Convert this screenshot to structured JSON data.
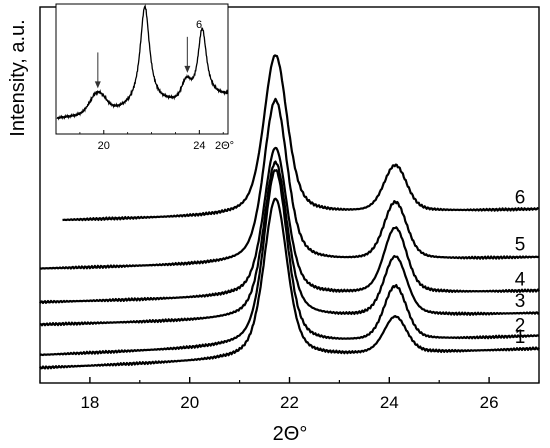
{
  "chart_data": [
    {
      "type": "line",
      "xlabel": "2Θ°",
      "ylabel": "Intensity, a.u.",
      "xlim": [
        17,
        27
      ],
      "xticks": [
        18,
        20,
        22,
        24,
        26
      ],
      "yticks": "none",
      "grid": false,
      "legend": "none (curve numbers printed at right end of each curve)",
      "peaks_2theta": [
        21.72,
        24.12
      ],
      "series": [
        {
          "name": "1",
          "baseline": 0.0,
          "peak1_height": 1.0,
          "peak2_height": 0.23
        },
        {
          "name": "2",
          "baseline": 0.08,
          "peak1_height": 1.1,
          "peak2_height": 0.34
        },
        {
          "name": "3",
          "baseline": 0.27,
          "peak1_height": 0.98,
          "peak2_height": 0.37
        },
        {
          "name": "4",
          "baseline": 0.41,
          "peak1_height": 0.93,
          "peak2_height": 0.41
        },
        {
          "name": "5",
          "baseline": 0.62,
          "peak1_height": 1.02,
          "peak2_height": 0.36
        },
        {
          "name": "6",
          "baseline": 0.92,
          "peak1_height": 1.0,
          "peak2_height": 0.29
        }
      ]
    },
    {
      "type": "line",
      "note_inset": true,
      "xlabel": "2Θ°",
      "xlim": [
        18,
        25.2
      ],
      "xticks": [
        20,
        24
      ],
      "series": [
        {
          "name": "6"
        }
      ],
      "annotations": [
        {
          "type": "arrow",
          "x": 19.75
        },
        {
          "type": "arrow",
          "x": 23.5
        }
      ]
    }
  ]
}
